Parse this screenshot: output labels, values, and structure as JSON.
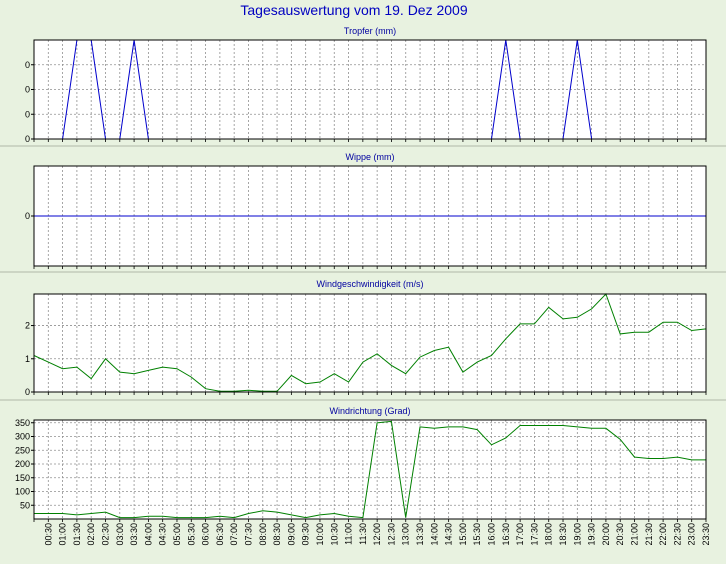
{
  "title": "Tagesauswertung vom 19. Dez 2009",
  "colors": {
    "background": "#e8f2e0",
    "title": "#0000c0",
    "blue_line": "#0000cc",
    "green_line": "#008000",
    "grid": "#808080"
  },
  "time_labels": [
    "00:30",
    "01:00",
    "01:30",
    "02:00",
    "02:30",
    "03:00",
    "03:30",
    "04:00",
    "04:30",
    "05:00",
    "05:30",
    "06:00",
    "06:30",
    "07:00",
    "07:30",
    "08:00",
    "08:30",
    "09:00",
    "09:30",
    "10:00",
    "10:30",
    "11:00",
    "11:30",
    "12:00",
    "12:30",
    "13:00",
    "13:30",
    "14:00",
    "14:30",
    "15:00",
    "15:30",
    "16:00",
    "16:30",
    "17:00",
    "17:30",
    "18:00",
    "18:30",
    "19:00",
    "19:30",
    "20:00",
    "20:30",
    "21:00",
    "21:30",
    "22:00",
    "22:30",
    "23:00",
    "23:30"
  ],
  "chart_data": [
    {
      "type": "line",
      "title": "Tropfer (mm)",
      "color": "#0000cc",
      "y_ticks": [
        "0",
        "0",
        "0",
        "0"
      ],
      "ylim": [
        0,
        4
      ],
      "grid": true,
      "x": [
        "00:00",
        "00:30",
        "01:00",
        "01:30",
        "02:00",
        "02:30",
        "03:00",
        "03:30",
        "04:00",
        "04:30",
        "05:00",
        "05:30",
        "06:00",
        "06:30",
        "07:00",
        "07:30",
        "08:00",
        "08:30",
        "09:00",
        "09:30",
        "10:00",
        "10:30",
        "11:00",
        "11:30",
        "12:00",
        "12:30",
        "13:00",
        "13:30",
        "14:00",
        "14:30",
        "15:00",
        "15:30",
        "16:00",
        "16:30",
        "17:00",
        "17:30",
        "18:00",
        "18:30",
        "19:00",
        "19:30",
        "20:00",
        "20:30",
        "21:00",
        "21:30",
        "22:00",
        "22:30",
        "23:00",
        "23:30"
      ],
      "values": [
        0,
        0,
        0,
        4,
        4,
        0,
        0,
        4,
        0,
        0,
        0,
        0,
        0,
        0,
        0,
        0,
        0,
        0,
        0,
        0,
        0,
        0,
        0,
        0,
        0,
        0,
        0,
        0,
        0,
        0,
        0,
        0,
        0,
        4,
        0,
        0,
        0,
        0,
        4,
        0,
        0,
        0,
        0,
        0,
        0,
        0,
        0,
        0
      ]
    },
    {
      "type": "line",
      "title": "Wippe (mm)",
      "color": "#0000cc",
      "y_ticks": [
        "0"
      ],
      "ylim": [
        -1,
        1
      ],
      "grid": true,
      "x": [
        "00:00",
        "23:30"
      ],
      "values": [
        0,
        0
      ]
    },
    {
      "type": "line",
      "title": "Windgeschwindigkeit (m/s)",
      "color": "#008000",
      "y_ticks": [
        "0",
        "1",
        "2"
      ],
      "ylim": [
        0,
        2.95
      ],
      "grid": true,
      "x": [
        "00:00",
        "00:30",
        "01:00",
        "01:30",
        "02:00",
        "02:30",
        "03:00",
        "03:30",
        "04:00",
        "04:30",
        "05:00",
        "05:30",
        "06:00",
        "06:30",
        "07:00",
        "07:30",
        "08:00",
        "08:30",
        "09:00",
        "09:30",
        "10:00",
        "10:30",
        "11:00",
        "11:30",
        "12:00",
        "12:30",
        "13:00",
        "13:30",
        "14:00",
        "14:30",
        "15:00",
        "15:30",
        "16:00",
        "16:30",
        "17:00",
        "17:30",
        "18:00",
        "18:30",
        "19:00",
        "19:30",
        "20:00",
        "20:30",
        "21:00",
        "21:30",
        "22:00",
        "22:30",
        "23:00",
        "23:30"
      ],
      "values": [
        1.1,
        0.9,
        0.7,
        0.75,
        0.4,
        1.0,
        0.6,
        0.55,
        0.65,
        0.75,
        0.7,
        0.45,
        0.1,
        0.02,
        0.02,
        0.05,
        0.02,
        0.02,
        0.5,
        0.25,
        0.3,
        0.55,
        0.3,
        0.9,
        1.15,
        0.8,
        0.55,
        1.05,
        1.25,
        1.35,
        0.6,
        0.9,
        1.1,
        1.6,
        2.05,
        2.05,
        2.55,
        2.2,
        2.25,
        2.5,
        2.95,
        1.75,
        1.8,
        1.8,
        2.1,
        2.1,
        1.85,
        1.9
      ]
    },
    {
      "type": "line",
      "title": "Windrichtung (Grad)",
      "color": "#008000",
      "y_ticks": [
        "50",
        "100",
        "150",
        "200",
        "250",
        "300",
        "350"
      ],
      "ylim": [
        0,
        360
      ],
      "grid": true,
      "x": [
        "00:00",
        "00:30",
        "01:00",
        "01:30",
        "02:00",
        "02:30",
        "03:00",
        "03:30",
        "04:00",
        "04:30",
        "05:00",
        "05:30",
        "06:00",
        "06:30",
        "07:00",
        "07:30",
        "08:00",
        "08:30",
        "09:00",
        "09:30",
        "10:00",
        "10:30",
        "11:00",
        "11:30",
        "12:00",
        "12:30",
        "13:00",
        "13:30",
        "14:00",
        "14:30",
        "15:00",
        "15:30",
        "16:00",
        "16:30",
        "17:00",
        "17:30",
        "18:00",
        "18:30",
        "19:00",
        "19:30",
        "20:00",
        "20:30",
        "21:00",
        "21:30",
        "22:00",
        "22:30",
        "23:00",
        "23:30"
      ],
      "values": [
        20,
        20,
        20,
        15,
        20,
        25,
        5,
        5,
        10,
        10,
        5,
        5,
        5,
        10,
        5,
        20,
        30,
        25,
        15,
        5,
        15,
        20,
        10,
        5,
        350,
        355,
        5,
        335,
        330,
        335,
        335,
        325,
        270,
        295,
        340,
        340,
        340,
        340,
        335,
        330,
        330,
        290,
        225,
        220,
        220,
        225,
        215,
        215
      ]
    }
  ]
}
